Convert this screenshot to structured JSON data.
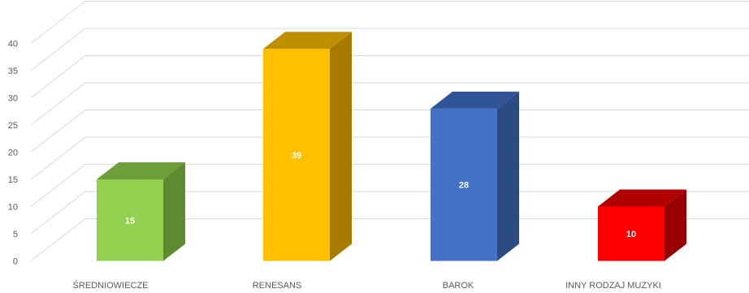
{
  "chart_data": {
    "type": "bar",
    "style": "3d-column",
    "categories": [
      "ŚREDNIOWIECZE",
      "RENESANS",
      "BAROK",
      "INNY RODZAJ MUZYKI"
    ],
    "values": [
      15,
      39,
      28,
      10
    ],
    "ylim": [
      0,
      40
    ],
    "yticks": [
      0,
      5,
      10,
      15,
      20,
      25,
      30,
      35,
      40
    ],
    "grid": true,
    "legend": "none",
    "colors": [
      {
        "front": "#92d050",
        "side": "#5e8a30",
        "top": "#6c9e3a"
      },
      {
        "front": "#ffc000",
        "side": "#a67c00",
        "top": "#bf8f00"
      },
      {
        "front": "#4472c4",
        "side": "#2b4b82",
        "top": "#2f5597"
      },
      {
        "front": "#ff0000",
        "side": "#990000",
        "top": "#b00000"
      }
    ],
    "grid_color": "#d9d9d9",
    "text_color": "#595959"
  }
}
